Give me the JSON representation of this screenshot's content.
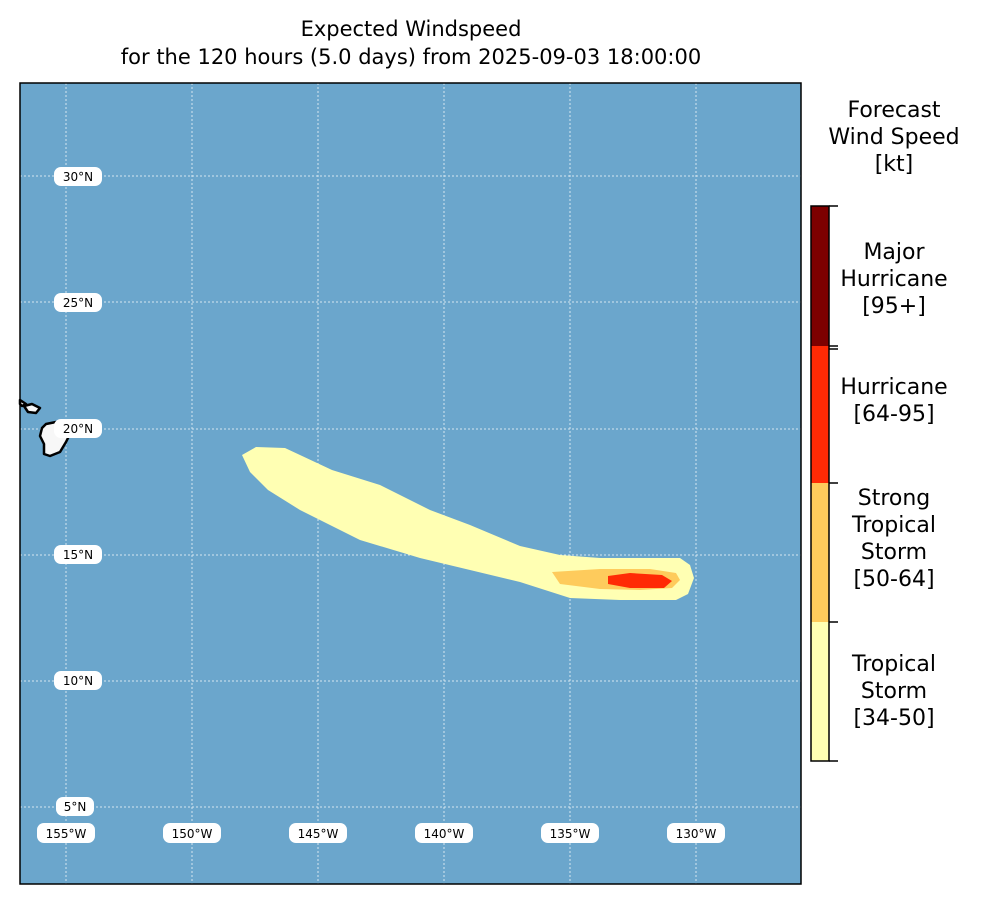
{
  "title": {
    "line1": "Expected Windspeed",
    "line2": "for the 120 hours (5.0 days) from 2025-09-03 18:00:00"
  },
  "colors": {
    "ocean": "#6ba6cc",
    "land": "#f7f7f7",
    "tropical_storm": "#ffffb3",
    "strong_tropical_storm": "#fecb5c",
    "hurricane": "#ff2a05",
    "major_hurricane": "#7d0000"
  },
  "map": {
    "lat_labels": [
      "30°N",
      "25°N",
      "20°N",
      "15°N",
      "10°N",
      "5°N"
    ],
    "lon_labels": [
      "155°W",
      "150°W",
      "145°W",
      "140°W",
      "135°W",
      "130°W"
    ]
  },
  "legend": {
    "title_lines": [
      "Forecast",
      "Wind Speed",
      "[kt]"
    ],
    "categories": [
      {
        "lines": [
          "Major",
          "Hurricane",
          "[95+]"
        ],
        "color_key": "major_hurricane"
      },
      {
        "lines": [
          "Hurricane",
          "[64-95]"
        ],
        "color_key": "hurricane"
      },
      {
        "lines": [
          "Strong",
          "Tropical",
          "Storm",
          "[50-64]"
        ],
        "color_key": "strong_tropical_storm"
      },
      {
        "lines": [
          "Tropical",
          "Storm",
          "[34-50]"
        ],
        "color_key": "tropical_storm"
      }
    ]
  }
}
